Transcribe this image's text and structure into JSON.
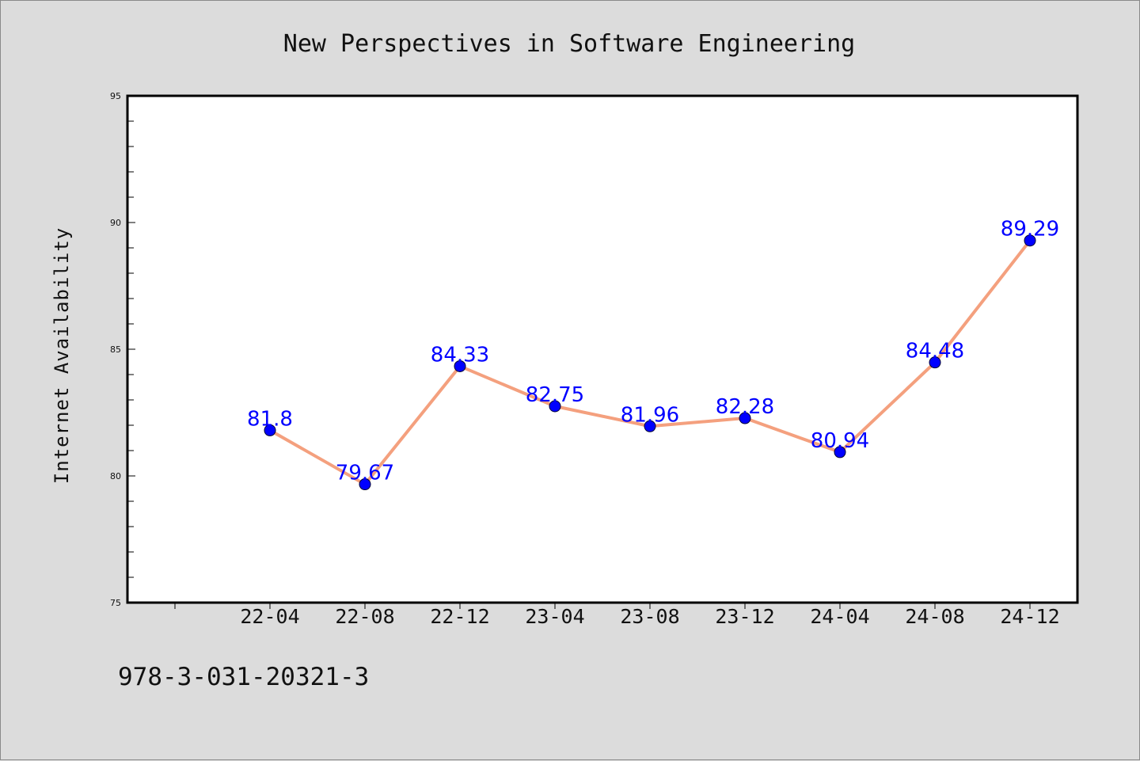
{
  "colors": {
    "background": "#dcdcdc",
    "plot_background": "#ffffff",
    "line": "#f4a07e",
    "marker": "#0000ff",
    "data_label": "#0000ff",
    "axis": "#000000"
  },
  "footer": {
    "isbn": "978-3-031-20321-3"
  },
  "chart_data": {
    "type": "line",
    "title": "New Perspectives in Software Engineering",
    "xlabel": "",
    "ylabel": "Internet Availability",
    "categories": [
      "22-04",
      "22-08",
      "22-12",
      "23-04",
      "23-08",
      "23-12",
      "24-04",
      "24-08",
      "24-12"
    ],
    "series": [
      {
        "values": [
          81.8,
          79.67,
          84.33,
          82.75,
          81.96,
          82.28,
          80.94,
          84.48,
          89.29
        ]
      }
    ],
    "data_labels": [
      "81.8",
      "79.67",
      "84.33",
      "82.75",
      "81.96",
      "82.28",
      "80.94",
      "84.48",
      "89.29"
    ],
    "ylim": [
      75,
      95
    ],
    "yticks": [
      "75",
      "80",
      "85",
      "90",
      "95"
    ],
    "grid": false,
    "legend": "none",
    "marker": "circle"
  }
}
